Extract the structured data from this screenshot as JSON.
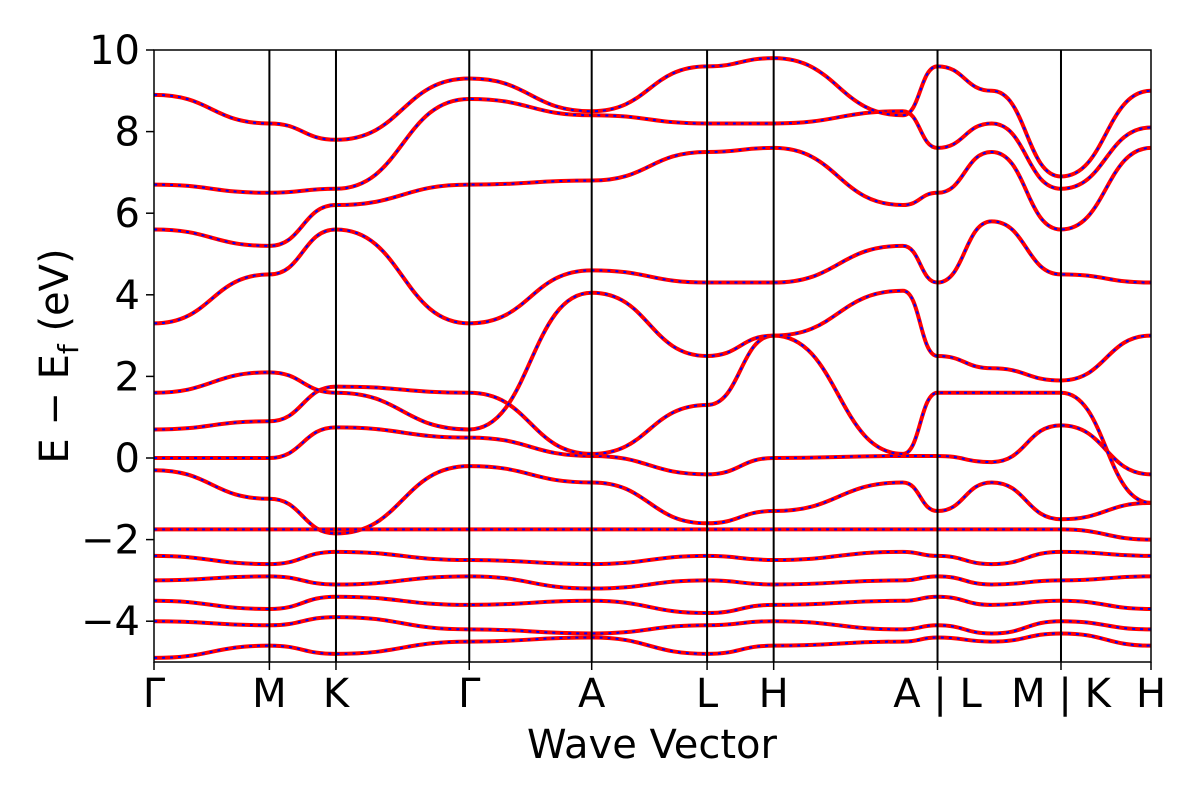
{
  "chart_data": {
    "type": "line",
    "title": "",
    "xlabel": "Wave Vector",
    "ylabel_parts": [
      "E",
      " − ",
      "E",
      "f",
      " (eV)"
    ],
    "ylim": [
      -5,
      10
    ],
    "y_ticks": [
      -4,
      -2,
      0,
      2,
      4,
      6,
      8,
      10
    ],
    "y_tick_labels": [
      "−4",
      "−2",
      "0",
      "2",
      "4",
      "6",
      "8",
      "10"
    ],
    "kpoint_positions": [
      0,
      1.0,
      1.577,
      2.732,
      3.793,
      4.793,
      5.37,
      6.79,
      7.86,
      8.64
    ],
    "kpoint_labels": [
      "Γ",
      "M",
      "K",
      "Γ",
      "A",
      "L",
      "H",
      "A | L",
      "M | K",
      "H"
    ],
    "xlim": [
      0,
      8.64
    ],
    "series_colors": {
      "bands": "#ff0000",
      "overlay": "#0000ff"
    },
    "series": [
      {
        "name": "",
        "x": [
          0,
          1.0,
          1.577,
          2.732,
          3.793,
          4.793,
          5.37,
          6.49,
          6.79,
          7.26,
          7.86,
          8.64
        ],
        "y": [
          -0.3,
          -1.0,
          -1.85,
          -0.2,
          -0.6,
          -1.6,
          -1.3,
          -0.6,
          -1.3,
          -0.6,
          -1.5,
          -1.1
        ]
      },
      {
        "name": "",
        "x": [
          0,
          1.0,
          1.577,
          2.732,
          3.793,
          4.793,
          5.37,
          6.49,
          6.79,
          7.26,
          7.86,
          8.64
        ],
        "y": [
          0.0,
          0.0,
          0.75,
          0.5,
          0.05,
          -0.4,
          0.0,
          0.05,
          0.05,
          -0.1,
          0.8,
          -0.4
        ]
      },
      {
        "name": "",
        "x": [
          0,
          1.0,
          1.577,
          2.732,
          3.793,
          4.793,
          5.37,
          6.49,
          6.79,
          7.26,
          7.86,
          8.64
        ],
        "y": [
          0.7,
          0.9,
          1.75,
          1.6,
          0.1,
          1.3,
          3.0,
          0.1,
          1.6,
          1.6,
          1.6,
          -1.1
        ]
      },
      {
        "name": "",
        "x": [
          0,
          1.0,
          1.577,
          2.732,
          3.793,
          4.793,
          5.37,
          6.49,
          6.79,
          7.26,
          7.86,
          8.64
        ],
        "y": [
          1.6,
          2.1,
          1.6,
          0.7,
          4.05,
          2.5,
          3.0,
          4.1,
          2.5,
          2.2,
          1.9,
          3.0
        ]
      },
      {
        "name": "",
        "x": [
          0,
          1.0,
          1.577,
          2.732,
          3.793,
          4.793,
          5.37,
          6.49,
          6.79,
          7.26,
          7.86,
          8.64
        ],
        "y": [
          3.3,
          4.5,
          5.6,
          3.3,
          4.6,
          4.3,
          4.3,
          5.2,
          4.3,
          5.8,
          4.5,
          4.3
        ]
      },
      {
        "name": "",
        "x": [
          0,
          1.0,
          1.577,
          2.732,
          3.793,
          4.793,
          5.37,
          6.49,
          6.79,
          7.26,
          7.86,
          8.64
        ],
        "y": [
          5.6,
          5.2,
          6.2,
          6.7,
          6.8,
          7.5,
          7.6,
          6.2,
          6.5,
          7.5,
          5.6,
          7.6
        ]
      },
      {
        "name": "",
        "x": [
          0,
          1.0,
          1.577,
          2.732,
          3.793,
          4.793,
          5.37,
          6.49,
          6.79,
          7.26,
          7.86,
          8.64
        ],
        "y": [
          6.7,
          6.5,
          6.6,
          8.8,
          8.4,
          8.2,
          8.2,
          8.5,
          7.6,
          8.2,
          6.6,
          8.1
        ]
      },
      {
        "name": "",
        "x": [
          0,
          1.0,
          1.577,
          2.732,
          3.793,
          4.793,
          5.37,
          6.49,
          6.79,
          7.26,
          7.86,
          8.64
        ],
        "y": [
          8.9,
          8.2,
          7.8,
          9.3,
          8.5,
          9.6,
          9.8,
          8.4,
          9.6,
          9.0,
          6.9,
          9.0
        ]
      },
      {
        "name": "",
        "x": [
          0,
          1.0,
          1.577,
          2.732,
          3.793,
          4.793,
          5.37,
          6.49,
          6.79,
          7.26,
          7.86,
          8.64
        ],
        "y": [
          -1.75,
          -1.75,
          -1.75,
          -1.75,
          -1.75,
          -1.75,
          -1.75,
          -1.75,
          -1.75,
          -1.75,
          -1.75,
          -2.0
        ]
      },
      {
        "name": "",
        "x": [
          0,
          1.0,
          1.577,
          2.732,
          3.793,
          4.793,
          5.37,
          6.49,
          6.79,
          7.26,
          7.86,
          8.64
        ],
        "y": [
          -2.4,
          -2.6,
          -2.3,
          -2.5,
          -2.6,
          -2.4,
          -2.5,
          -2.3,
          -2.4,
          -2.6,
          -2.3,
          -2.4
        ]
      },
      {
        "name": "",
        "x": [
          0,
          1.0,
          1.577,
          2.732,
          3.793,
          4.793,
          5.37,
          6.49,
          6.79,
          7.26,
          7.86,
          8.64
        ],
        "y": [
          -3.0,
          -2.9,
          -3.1,
          -2.9,
          -3.2,
          -3.0,
          -3.1,
          -3.0,
          -2.9,
          -3.1,
          -3.0,
          -2.9
        ]
      },
      {
        "name": "",
        "x": [
          0,
          1.0,
          1.577,
          2.732,
          3.793,
          4.793,
          5.37,
          6.49,
          6.79,
          7.26,
          7.86,
          8.64
        ],
        "y": [
          -3.5,
          -3.7,
          -3.4,
          -3.6,
          -3.5,
          -3.8,
          -3.6,
          -3.5,
          -3.4,
          -3.6,
          -3.5,
          -3.7
        ]
      },
      {
        "name": "",
        "x": [
          0,
          1.0,
          1.577,
          2.732,
          3.793,
          4.793,
          5.37,
          6.49,
          6.79,
          7.26,
          7.86,
          8.64
        ],
        "y": [
          -4.0,
          -4.1,
          -3.9,
          -4.2,
          -4.3,
          -4.1,
          -4.0,
          -4.2,
          -4.1,
          -4.3,
          -4.0,
          -4.2
        ]
      },
      {
        "name": "",
        "x": [
          0,
          1.0,
          1.577,
          2.732,
          3.793,
          4.793,
          5.37,
          6.49,
          6.79,
          7.26,
          7.86,
          8.64
        ],
        "y": [
          -4.9,
          -4.6,
          -4.8,
          -4.5,
          -4.4,
          -4.8,
          -4.6,
          -4.5,
          -4.4,
          -4.5,
          -4.3,
          -4.6
        ]
      }
    ]
  }
}
